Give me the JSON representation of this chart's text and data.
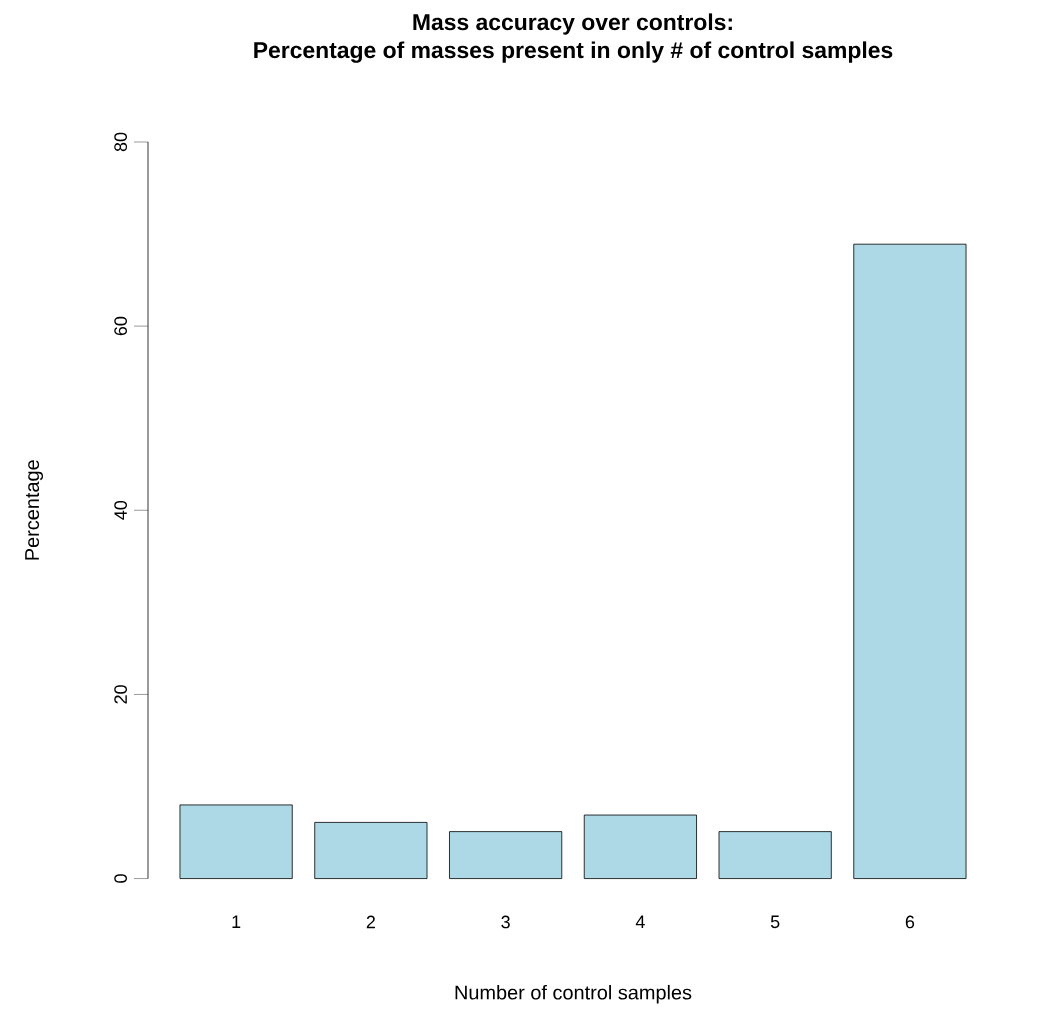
{
  "chart_data": {
    "type": "bar",
    "title": "Mass accuracy over controls:",
    "subtitle": "Percentage of masses present in only  # of control samples",
    "xlabel": "Number of control samples",
    "ylabel": "Percentage",
    "categories": [
      "1",
      "2",
      "3",
      "4",
      "5",
      "6"
    ],
    "values": [
      8.0,
      6.1,
      5.1,
      6.9,
      5.1,
      68.9
    ],
    "color": "#add8e6",
    "ylim": [
      0,
      80
    ],
    "yticks": [
      0,
      20,
      40,
      60,
      80
    ],
    "grid": false
  }
}
